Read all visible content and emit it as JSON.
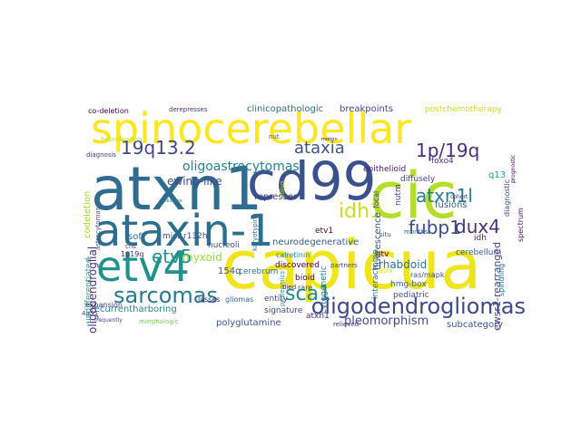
{
  "word_cloud": {
    "words": [
      {
        "text": "capicua",
        "color": "#efe51c"
      },
      {
        "text": "atxn1",
        "color": "#2f6c8e"
      },
      {
        "text": "cic",
        "color": "#b5de2b"
      },
      {
        "text": "spinocerebellar",
        "color": "#fde725"
      },
      {
        "text": "cd99",
        "color": "#3b518b"
      },
      {
        "text": "ataxin-1",
        "color": "#2d708e"
      },
      {
        "text": "etv4",
        "color": "#20928c"
      },
      {
        "text": "oligodendrogliomas",
        "color": "#3f4889"
      },
      {
        "text": "sarcomas",
        "color": "#2a788e"
      },
      {
        "text": "19q13.2",
        "color": "#414487"
      },
      {
        "text": "ataxia",
        "color": "#3b528b"
      },
      {
        "text": "1p/19q",
        "color": "#472d7b"
      },
      {
        "text": "atxn1l",
        "color": "#287d8e"
      },
      {
        "text": "dux4",
        "color": "#46337e"
      },
      {
        "text": "fubp1",
        "color": "#3e4a89"
      },
      {
        "text": "idh1",
        "color": "#c8e020"
      },
      {
        "text": "etv5",
        "color": "#21918c"
      },
      {
        "text": "sca1",
        "color": "#23898e"
      },
      {
        "text": "ewsr1-rearranged",
        "color": "#404688"
      },
      {
        "text": "oligoastrocytomas",
        "color": "#26828e"
      },
      {
        "text": "ewing-like",
        "color": "#3e4989"
      },
      {
        "text": "myxoid",
        "color": "#9bd93c"
      },
      {
        "text": "oligodendroglial",
        "color": "#472c7a"
      },
      {
        "text": "pleomorphism",
        "color": "#3e4a89"
      },
      {
        "text": "neurodegenerative",
        "color": "#375a8c"
      },
      {
        "text": "polyglutamine",
        "color": "#3a548c"
      },
      {
        "text": "recurrentharboring",
        "color": "#24868e"
      },
      {
        "text": "co-deletion",
        "color": "#440154"
      },
      {
        "text": "codeletion",
        "color": "#a0da39"
      },
      {
        "text": "derepresses",
        "color": "#46307e"
      },
      {
        "text": "clinicopathologic",
        "color": "#2e6f8e"
      },
      {
        "text": "breakpoints",
        "color": "#3e4989"
      },
      {
        "text": "postchemotherapy",
        "color": "#c2df23"
      },
      {
        "text": "undifferentiated",
        "color": "#20a386"
      },
      {
        "text": "epithelioid",
        "color": "#482173"
      },
      {
        "text": "rhabdoid",
        "color": "#2c728e"
      },
      {
        "text": "fusions",
        "color": "#365c8d"
      },
      {
        "text": "diffusely",
        "color": "#404588"
      },
      {
        "text": "cerebellum",
        "color": "#38588c"
      },
      {
        "text": "diagnostic",
        "color": "#3e4c8a"
      },
      {
        "text": "repressor",
        "color": "#423f85"
      },
      {
        "text": "nucleoli",
        "color": "#3b528b"
      },
      {
        "text": "cerebrum",
        "color": "#2b748e"
      },
      {
        "text": "calretinin",
        "color": "#25858e"
      },
      {
        "text": "discovered",
        "color": "#440154"
      },
      {
        "text": "hmg-box",
        "color": "#32658e"
      },
      {
        "text": "pediatric",
        "color": "#3b518b"
      },
      {
        "text": "subcategory",
        "color": "#3b528b"
      },
      {
        "text": "atxn1",
        "color": "#46327e"
      },
      {
        "text": "relieved",
        "color": "#46307e"
      },
      {
        "text": "signature",
        "color": "#404688"
      },
      {
        "text": "gliomas",
        "color": "#31668e"
      },
      {
        "text": "losses",
        "color": "#482475"
      },
      {
        "text": "entity",
        "color": "#404588"
      },
      {
        "text": "etv1",
        "color": "#440154"
      },
      {
        "text": "154q",
        "color": "#3e4c8a"
      },
      {
        "text": "soft",
        "color": "#2d708e"
      },
      {
        "text": "mic2",
        "color": "#39568c"
      },
      {
        "text": "r132h",
        "color": "#3d4e8a"
      },
      {
        "text": "q13",
        "color": "#20a386"
      },
      {
        "text": "foxo4",
        "color": "#46337e"
      },
      {
        "text": "idh",
        "color": "#482173"
      },
      {
        "text": "etv",
        "color": "#440154"
      },
      {
        "text": "ras/mapk",
        "color": "#3b528b"
      },
      {
        "text": "fluorescence",
        "color": "#3b528b"
      },
      {
        "text": "interactome",
        "color": "#2c738e"
      },
      {
        "text": "cytogenetic",
        "color": "#2a778e"
      },
      {
        "text": "expansion",
        "color": "#46337e"
      },
      {
        "text": "1p19q",
        "color": "#482878"
      },
      {
        "text": "4q35",
        "color": "#414487"
      },
      {
        "text": "proteomics",
        "color": "#20928c"
      },
      {
        "text": "spindling",
        "color": "#2c728e"
      },
      {
        "text": "spectrum",
        "color": "#471365"
      },
      {
        "text": "atrx",
        "color": "#d8e219"
      },
      {
        "text": "bioid",
        "color": "#440154"
      },
      {
        "text": "died",
        "color": "#46327e"
      },
      {
        "text": "rare",
        "color": "#3e4a89"
      },
      {
        "text": "nutm",
        "color": "#423f85"
      },
      {
        "text": "months",
        "color": "#2e6e8e"
      },
      {
        "text": "focal",
        "color": "#414487"
      },
      {
        "text": "partners",
        "color": "#3f4788"
      },
      {
        "text": "karyotyping",
        "color": "#2f6c8e"
      },
      {
        "text": "cns",
        "color": "#433e85"
      },
      {
        "text": "morphologic",
        "color": "#73d056"
      },
      {
        "text": "hybridization",
        "color": "#b8de29"
      },
      {
        "text": "astrocytomas",
        "color": "#3b528b"
      },
      {
        "text": "diagnosis",
        "color": "#443983"
      },
      {
        "text": "frequently",
        "color": "#3e4989"
      },
      {
        "text": "situ",
        "color": "#3b528b"
      },
      {
        "text": "nut",
        "color": "#3d4d8a"
      },
      {
        "text": "motion",
        "color": "#440154"
      },
      {
        "text": "polyq",
        "color": "#b5de2b"
      },
      {
        "text": "cohort",
        "color": "#482475"
      },
      {
        "text": "prognostic",
        "color": "#440154"
      },
      {
        "text": "disease",
        "color": "#26818e"
      }
    ]
  }
}
